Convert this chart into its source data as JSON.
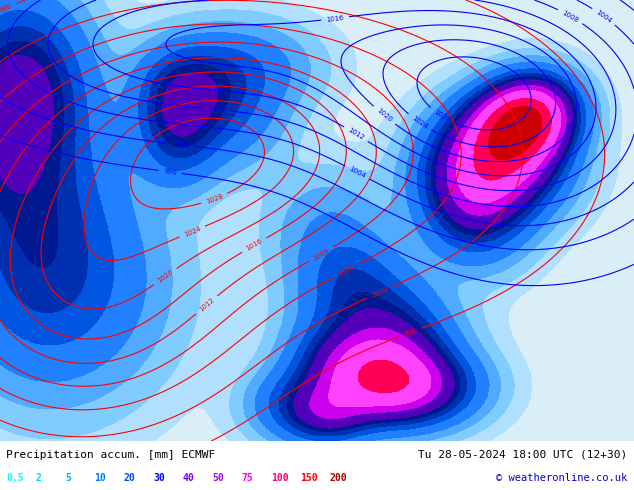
{
  "title_left": "Precipitation accum. [mm] ECMWF",
  "title_right": "Tu 28-05-2024 18:00 UTC (12+30)",
  "copyright": "© weatheronline.co.uk",
  "legend_values": [
    "0.5",
    "2",
    "5",
    "10",
    "20",
    "30",
    "40",
    "50",
    "75",
    "100",
    "150",
    "200"
  ],
  "legend_colors": [
    "#00ffff",
    "#00d0ff",
    "#00aaff",
    "#0077ff",
    "#0044ff",
    "#0000ff",
    "#7700ff",
    "#aa00ff",
    "#ff00ff",
    "#ff0077",
    "#ff0000",
    "#aa0000"
  ],
  "bg_color": "#c8e8f8",
  "fig_width": 6.34,
  "fig_height": 4.9
}
